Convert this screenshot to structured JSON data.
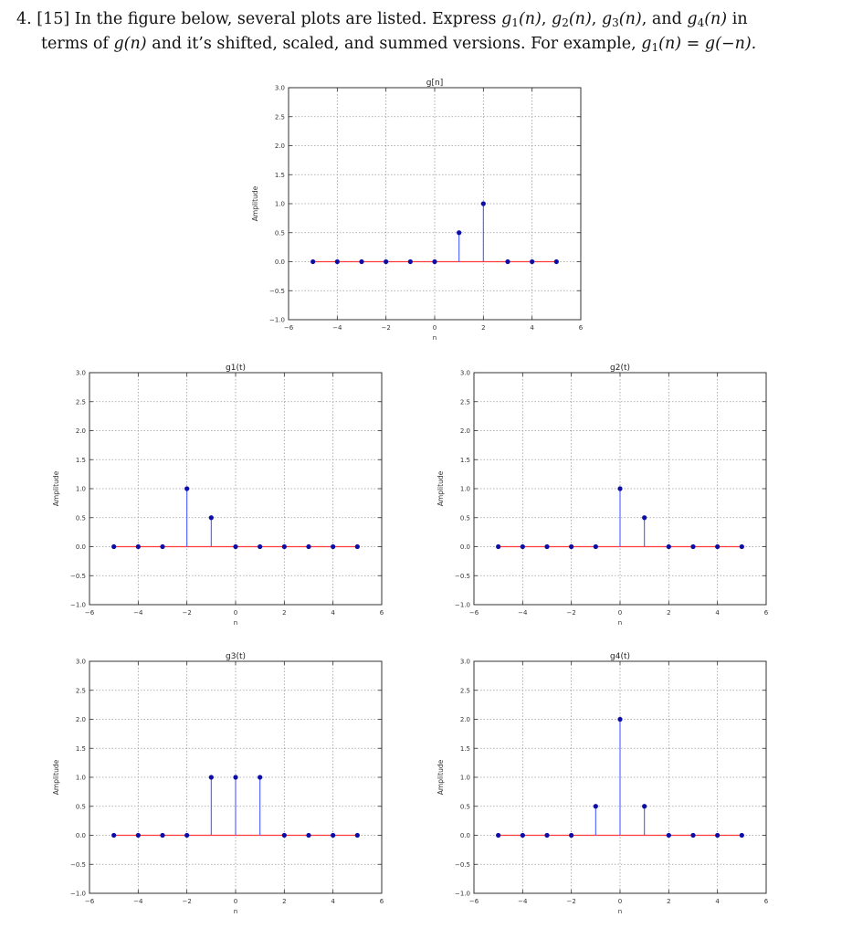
{
  "problem": {
    "number": "4.",
    "points": "[15]",
    "text_a": "In the figure below, several plots are listed. Express",
    "g1": "g",
    "g1_sub": "1",
    "n_arg": "(n)",
    "g2": "g",
    "g2_sub": "2",
    "g3": "g",
    "g3_sub": "3",
    "g4": "g",
    "g4_sub": "4",
    "and": "and",
    "in": "in",
    "text_b": "terms of",
    "g_n": "g(n)",
    "text_c": "and it’s shifted, scaled, and summed versions. For example,",
    "example_lhs_g": "g",
    "example_lhs_sub": "1",
    "example_lhs_arg": "(n)",
    "example_eq": "=",
    "example_rhs": "g(−n)."
  },
  "chart_data": [
    {
      "type": "stem",
      "title": "g[n]",
      "xlabel": "n",
      "ylabel": "Amplitude",
      "xlim": [
        -6,
        6
      ],
      "ylim": [
        -1.0,
        3.0
      ],
      "xticks": [
        "−6",
        "−4",
        "−2",
        "0",
        "2",
        "4",
        "6"
      ],
      "yticks": [
        "−1.0",
        "−0.5",
        "0.0",
        "0.5",
        "1.0",
        "1.5",
        "2.0",
        "2.5",
        "3.0"
      ],
      "grid": true,
      "x": [
        -5,
        -4,
        -3,
        -2,
        -1,
        0,
        1,
        2,
        3,
        4,
        5
      ],
      "y": [
        0,
        0,
        0,
        0,
        0,
        0,
        0.5,
        1,
        0,
        0,
        0
      ],
      "colors": {
        "stem": "#4a5dff",
        "marker": "#0d0da8",
        "baseline": "#ff3b3b",
        "frame": "#333333",
        "grid": "#9a9a9a"
      }
    },
    {
      "type": "stem",
      "title": "g1(t)",
      "xlabel": "n",
      "ylabel": "Amplitude",
      "xlim": [
        -6,
        6
      ],
      "ylim": [
        -1.0,
        3.0
      ],
      "xticks": [
        "−6",
        "−4",
        "−2",
        "0",
        "2",
        "4",
        "6"
      ],
      "yticks": [
        "−1.0",
        "−0.5",
        "0.0",
        "0.5",
        "1.0",
        "1.5",
        "2.0",
        "2.5",
        "3.0"
      ],
      "grid": true,
      "x": [
        -5,
        -4,
        -3,
        -2,
        -1,
        0,
        1,
        2,
        3,
        4,
        5
      ],
      "y": [
        0,
        0,
        0,
        1,
        0.5,
        0,
        0,
        0,
        0,
        0,
        0
      ],
      "colors": {
        "stem": "#4a5dff",
        "marker": "#0d0da8",
        "baseline": "#ff3b3b",
        "frame": "#333333",
        "grid": "#9a9a9a"
      }
    },
    {
      "type": "stem",
      "title": "g2(t)",
      "xlabel": "n",
      "ylabel": "Amplitude",
      "xlim": [
        -6,
        6
      ],
      "ylim": [
        -1.0,
        3.0
      ],
      "xticks": [
        "−6",
        "−4",
        "−2",
        "0",
        "2",
        "4",
        "6"
      ],
      "yticks": [
        "−1.0",
        "−0.5",
        "0.0",
        "0.5",
        "1.0",
        "1.5",
        "2.0",
        "2.5",
        "3.0"
      ],
      "grid": true,
      "x": [
        -5,
        -4,
        -3,
        -2,
        -1,
        0,
        1,
        2,
        3,
        4,
        5
      ],
      "y": [
        0,
        0,
        0,
        0,
        0,
        1,
        0.5,
        0,
        0,
        0,
        0
      ],
      "colors": {
        "stem": "#4a5dff",
        "marker": "#0d0da8",
        "baseline": "#ff3b3b",
        "frame": "#333333",
        "grid": "#9a9a9a"
      }
    },
    {
      "type": "stem",
      "title": "g3(t)",
      "xlabel": "n",
      "ylabel": "Amplitude",
      "xlim": [
        -6,
        6
      ],
      "ylim": [
        -1.0,
        3.0
      ],
      "xticks": [
        "−6",
        "−4",
        "−2",
        "0",
        "2",
        "4",
        "6"
      ],
      "yticks": [
        "−1.0",
        "−0.5",
        "0.0",
        "0.5",
        "1.0",
        "1.5",
        "2.0",
        "2.5",
        "3.0"
      ],
      "grid": true,
      "x": [
        -5,
        -4,
        -3,
        -2,
        -1,
        0,
        1,
        2,
        3,
        4,
        5
      ],
      "y": [
        0,
        0,
        0,
        0,
        1,
        1,
        1,
        0,
        0,
        0,
        0
      ],
      "colors": {
        "stem": "#4a5dff",
        "marker": "#0d0da8",
        "baseline": "#ff3b3b",
        "frame": "#333333",
        "grid": "#9a9a9a"
      }
    },
    {
      "type": "stem",
      "title": "g4(t)",
      "xlabel": "n",
      "ylabel": "Amplitude",
      "xlim": [
        -6,
        6
      ],
      "ylim": [
        -1.0,
        3.0
      ],
      "xticks": [
        "−6",
        "−4",
        "−2",
        "0",
        "2",
        "4",
        "6"
      ],
      "yticks": [
        "−1.0",
        "−0.5",
        "0.0",
        "0.5",
        "1.0",
        "1.5",
        "2.0",
        "2.5",
        "3.0"
      ],
      "grid": true,
      "x": [
        -5,
        -4,
        -3,
        -2,
        -1,
        0,
        1,
        2,
        3,
        4,
        5
      ],
      "y": [
        0,
        0,
        0,
        0,
        0.5,
        2,
        0.5,
        0,
        0,
        0,
        0
      ],
      "colors": {
        "stem": "#4a5dff",
        "marker": "#0d0da8",
        "baseline": "#ff3b3b",
        "frame": "#333333",
        "grid": "#9a9a9a"
      }
    }
  ]
}
